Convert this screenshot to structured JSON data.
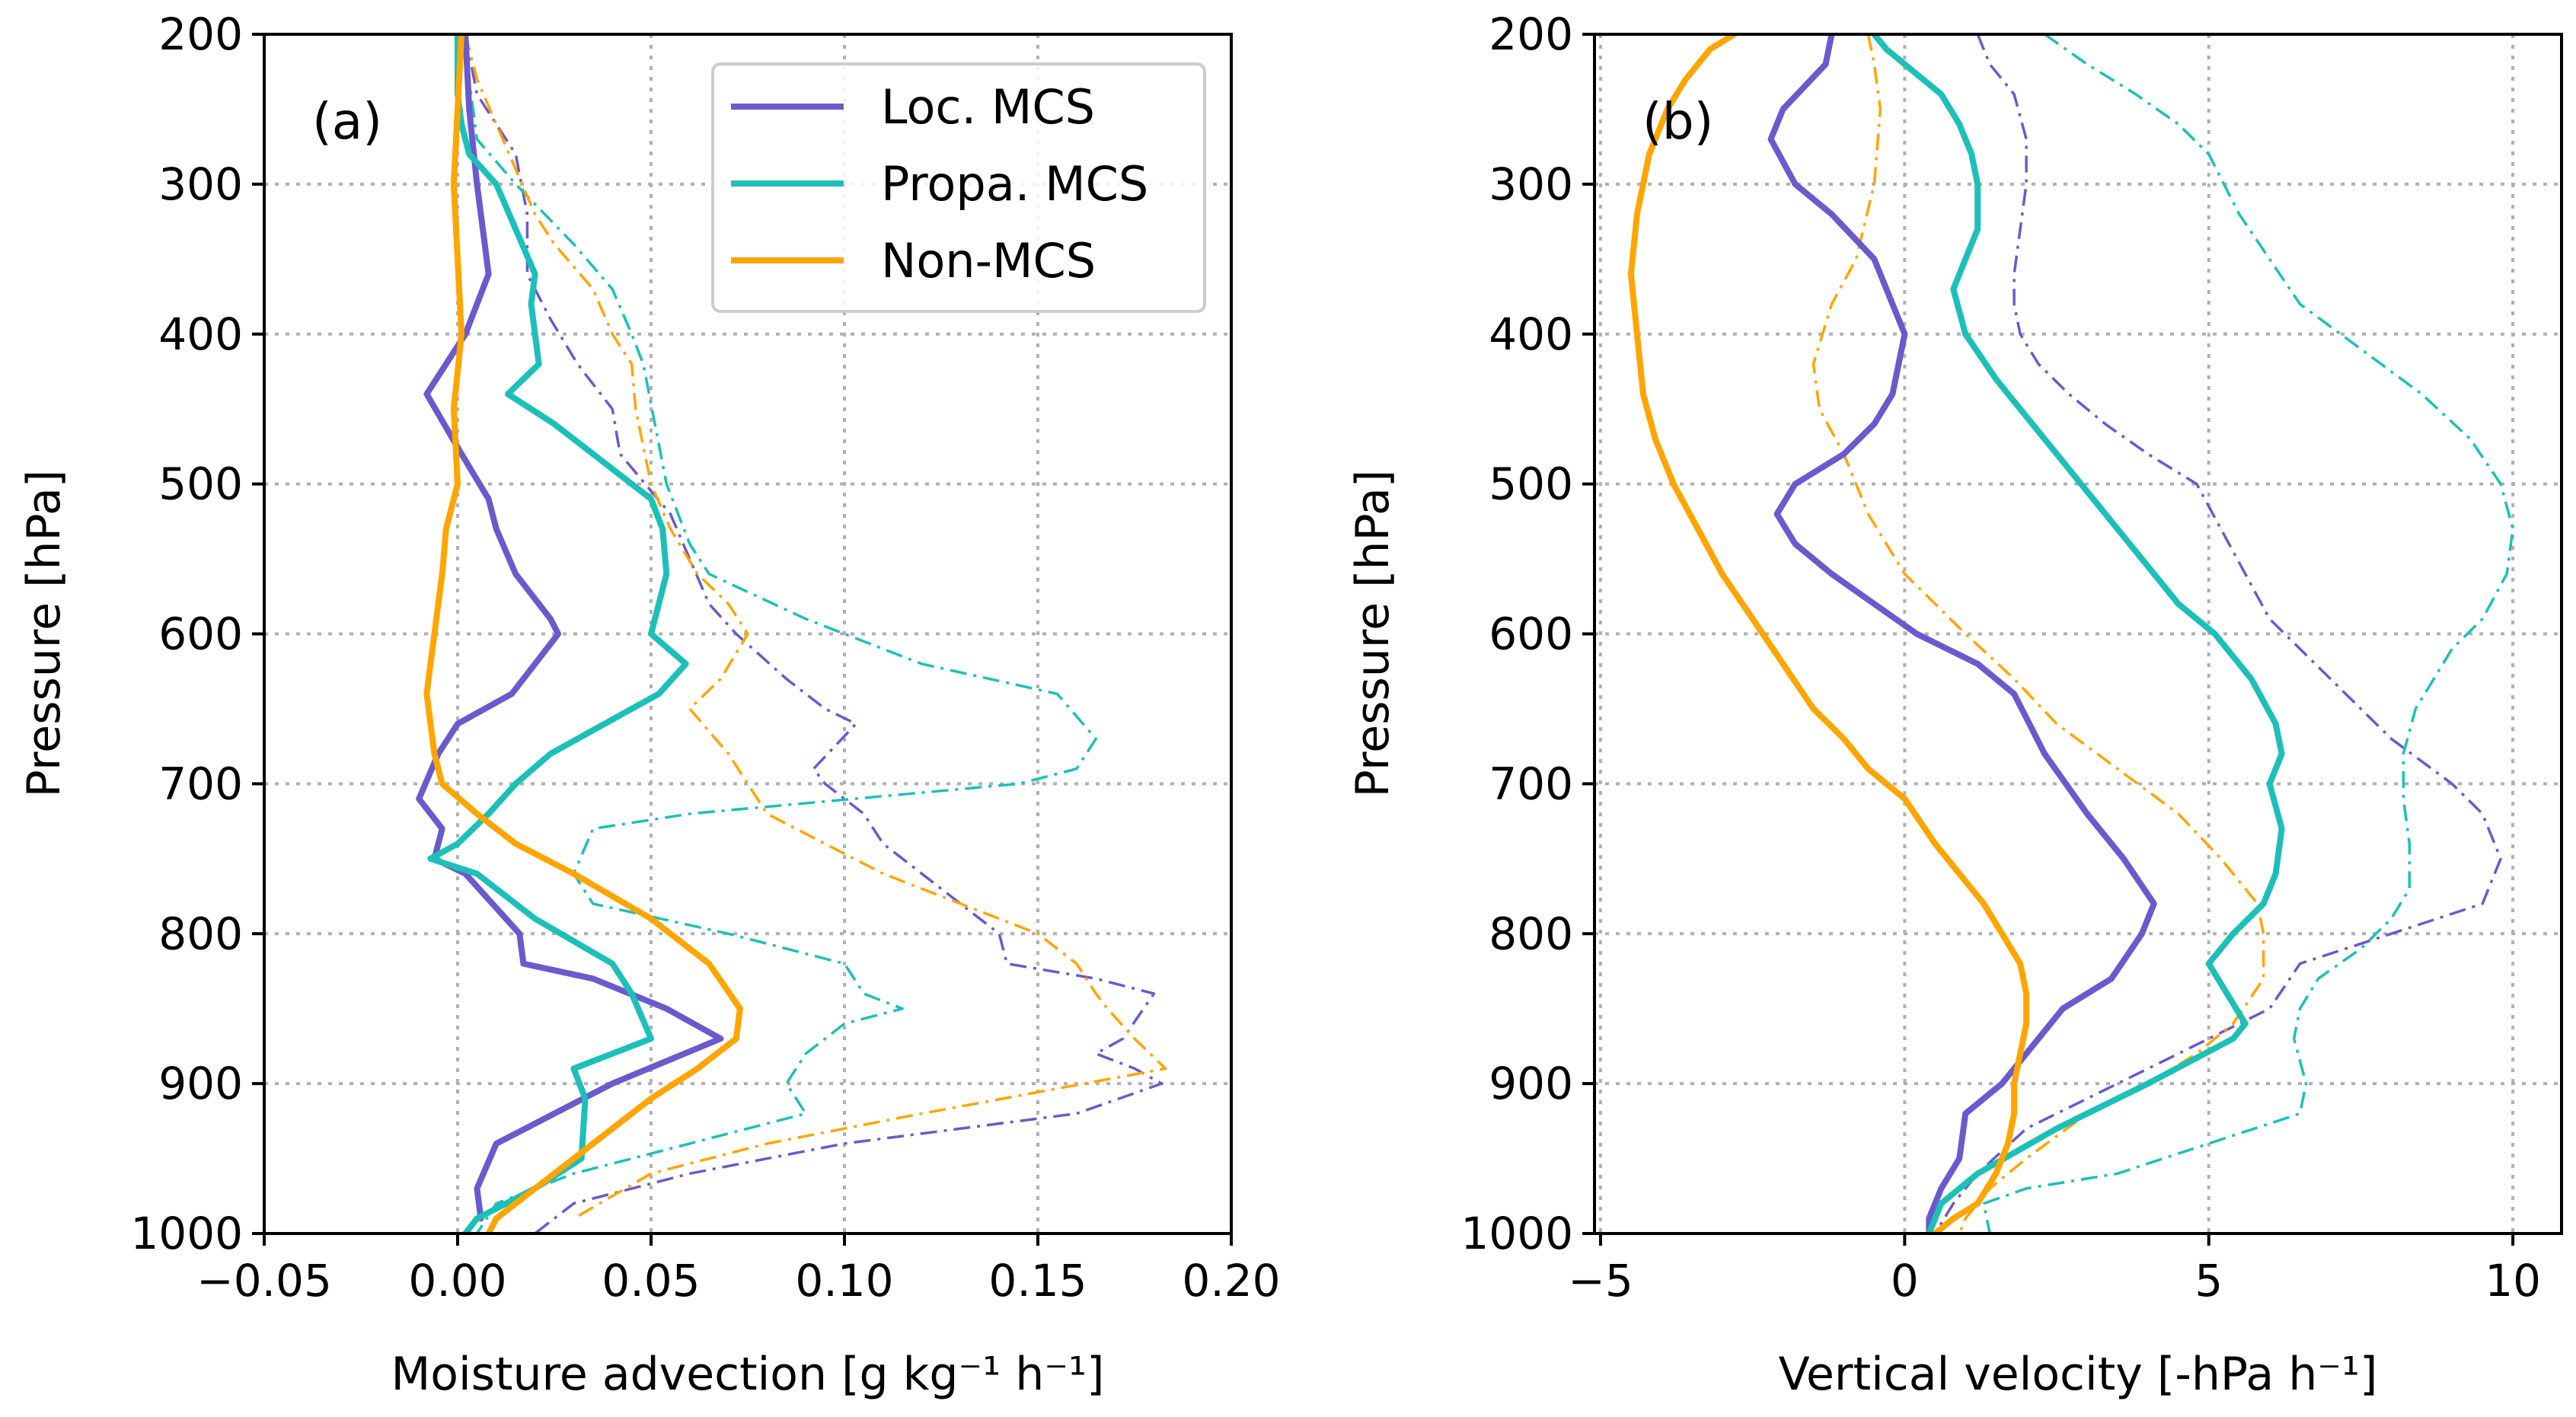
{
  "colors": {
    "loc": "#6a5acd",
    "propa": "#1cc0b8",
    "non": "#ffa500"
  },
  "legend": {
    "items": [
      {
        "label": "Loc. MCS",
        "color": "#6a5acd"
      },
      {
        "label": "Propa. MCS",
        "color": "#1cc0b8"
      },
      {
        "label": "Non-MCS",
        "color": "#ffa500"
      }
    ]
  },
  "chart_data": [
    {
      "panel": "(a)",
      "type": "line",
      "xlabel": "Moisture advection [g kg⁻¹ h⁻¹]",
      "ylabel": "Pressure [hPa]",
      "xlim": [
        -0.05,
        0.2
      ],
      "ylim": [
        1000,
        200
      ],
      "xticks": [
        -0.05,
        0.0,
        0.05,
        0.1,
        0.15,
        0.2
      ],
      "xtick_labels": [
        "−0.05",
        "0.00",
        "0.05",
        "0.10",
        "0.15",
        "0.20"
      ],
      "yticks": [
        200,
        300,
        400,
        500,
        600,
        700,
        800,
        900,
        1000
      ],
      "ytick_labels": [
        "200",
        "300",
        "400",
        "500",
        "600",
        "700",
        "800",
        "900",
        "1000"
      ],
      "grid": true,
      "legend_position": "top-right",
      "series": [
        {
          "name": "Loc. MCS",
          "style": "solid",
          "x": [
            0.002,
            0.003,
            0.005,
            0.007,
            0.008,
            0.002,
            -0.003,
            -0.008,
            0.001,
            0.008,
            0.01,
            0.015,
            0.018,
            0.024,
            0.026,
            0.02,
            0.014,
            0.0,
            -0.005,
            -0.01,
            -0.004,
            -0.006,
            0.002,
            0.016,
            0.017,
            0.035,
            0.054,
            0.068,
            0.04,
            0.01,
            0.005,
            0.006
          ],
          "y": [
            200,
            250,
            300,
            340,
            360,
            400,
            420,
            440,
            480,
            510,
            530,
            560,
            570,
            590,
            600,
            620,
            640,
            660,
            680,
            710,
            730,
            750,
            760,
            800,
            820,
            830,
            850,
            870,
            900,
            940,
            970,
            990
          ]
        },
        {
          "name": "Loc. MCS",
          "style": "dash-dot",
          "x": [
            0.002,
            0.005,
            0.015,
            0.018,
            0.018,
            0.024,
            0.031,
            0.04,
            0.042,
            0.055,
            0.06,
            0.065,
            0.072,
            0.085,
            0.095,
            0.103,
            0.092,
            0.095,
            0.105,
            0.11,
            0.115,
            0.125,
            0.14,
            0.142,
            0.165,
            0.18,
            0.172,
            0.165,
            0.175,
            0.182,
            0.16,
            0.1,
            0.06,
            0.03,
            0.02
          ],
          "y": [
            200,
            240,
            280,
            320,
            360,
            390,
            420,
            450,
            480,
            520,
            550,
            580,
            600,
            630,
            650,
            660,
            690,
            700,
            720,
            740,
            750,
            770,
            800,
            820,
            830,
            840,
            870,
            880,
            890,
            900,
            920,
            940,
            960,
            980,
            1000
          ]
        },
        {
          "name": "Propa. MCS",
          "style": "solid",
          "x": [
            0.0,
            0.0,
            0.001,
            0.003,
            0.01,
            0.015,
            0.02,
            0.019,
            0.021,
            0.013,
            0.025,
            0.04,
            0.05,
            0.053,
            0.054,
            0.052,
            0.05,
            0.059,
            0.052,
            0.038,
            0.024,
            0.015,
            0.008,
            0.0,
            -0.007,
            0.005,
            0.02,
            0.04,
            0.045,
            0.05,
            0.04,
            0.03,
            0.033,
            0.032,
            0.02,
            0.005,
            0.002
          ],
          "y": [
            200,
            240,
            260,
            280,
            300,
            330,
            360,
            380,
            420,
            440,
            460,
            490,
            510,
            530,
            560,
            580,
            600,
            620,
            640,
            660,
            680,
            700,
            720,
            740,
            750,
            760,
            790,
            820,
            840,
            870,
            880,
            890,
            910,
            950,
            970,
            990,
            1000
          ]
        },
        {
          "name": "Propa. MCS",
          "style": "dash-dot",
          "x": [
            0.002,
            0.003,
            0.005,
            0.015,
            0.03,
            0.04,
            0.045,
            0.048,
            0.051,
            0.054,
            0.06,
            0.065,
            0.09,
            0.12,
            0.155,
            0.165,
            0.16,
            0.145,
            0.06,
            0.035,
            0.03,
            0.035,
            0.07,
            0.1,
            0.105,
            0.115,
            0.1,
            0.09,
            0.085,
            0.09,
            0.06,
            0.03,
            0.01,
            0.005
          ],
          "y": [
            200,
            230,
            270,
            300,
            340,
            370,
            400,
            420,
            460,
            500,
            540,
            560,
            590,
            620,
            640,
            670,
            690,
            700,
            720,
            730,
            760,
            780,
            800,
            820,
            840,
            850,
            860,
            880,
            900,
            920,
            940,
            960,
            980,
            1000
          ]
        },
        {
          "name": "Non-MCS",
          "style": "solid",
          "x": [
            0.001,
            0.0,
            -0.001,
            0.0,
            0.001,
            -0.001,
            0.0,
            -0.003,
            -0.004,
            -0.006,
            -0.007,
            -0.008,
            -0.007,
            -0.006,
            -0.004,
            0.005,
            0.015,
            0.03,
            0.05,
            0.065,
            0.073,
            0.072,
            0.062,
            0.05,
            0.04,
            0.03,
            0.02,
            0.01,
            0.008
          ],
          "y": [
            200,
            250,
            300,
            350,
            400,
            450,
            500,
            530,
            560,
            600,
            620,
            640,
            660,
            680,
            700,
            720,
            740,
            760,
            790,
            820,
            850,
            870,
            890,
            910,
            930,
            950,
            970,
            990,
            1000
          ]
        },
        {
          "name": "Non-MCS",
          "style": "dash-dot",
          "x": [
            0.002,
            0.005,
            0.01,
            0.015,
            0.02,
            0.025,
            0.035,
            0.04,
            0.045,
            0.046,
            0.05,
            0.055,
            0.062,
            0.07,
            0.075,
            0.068,
            0.06,
            0.07,
            0.075,
            0.08,
            0.11,
            0.13,
            0.15,
            0.16,
            0.165,
            0.168,
            0.175,
            0.183,
            0.12,
            0.08,
            0.05,
            0.03
          ],
          "y": [
            200,
            230,
            260,
            290,
            320,
            340,
            370,
            400,
            420,
            450,
            500,
            530,
            560,
            580,
            600,
            630,
            650,
            680,
            700,
            720,
            760,
            780,
            800,
            820,
            840,
            850,
            870,
            890,
            920,
            940,
            960,
            990
          ]
        }
      ]
    },
    {
      "panel": "(b)",
      "type": "line",
      "xlabel": "Vertical velocity [-hPa h⁻¹]",
      "ylabel": "Pressure [hPa]",
      "xlim": [
        -5.1,
        10.8
      ],
      "ylim": [
        1000,
        200
      ],
      "xticks": [
        -5,
        0,
        5,
        10
      ],
      "xtick_labels": [
        "−5",
        "0",
        "5",
        "10"
      ],
      "yticks": [
        200,
        300,
        400,
        500,
        600,
        700,
        800,
        900,
        1000
      ],
      "ytick_labels": [
        "200",
        "300",
        "400",
        "500",
        "600",
        "700",
        "800",
        "900",
        "1000"
      ],
      "grid": true,
      "series": [
        {
          "name": "Loc. MCS",
          "style": "solid",
          "x": [
            -1.2,
            -1.3,
            -2.0,
            -2.2,
            -1.8,
            -1.2,
            -0.5,
            -0.2,
            0.0,
            -0.1,
            -0.2,
            -0.5,
            -1.0,
            -1.8,
            -2.1,
            -1.8,
            -1.2,
            -0.5,
            0.2,
            1.2,
            1.8,
            2.3,
            3.0,
            3.6,
            4.1,
            3.9,
            3.4,
            2.6,
            1.6,
            1.0,
            0.9,
            0.6,
            0.4,
            0.4
          ],
          "y": [
            200,
            220,
            250,
            270,
            300,
            320,
            350,
            380,
            400,
            420,
            440,
            460,
            480,
            500,
            520,
            540,
            560,
            580,
            600,
            620,
            640,
            680,
            720,
            750,
            780,
            800,
            830,
            850,
            900,
            920,
            950,
            970,
            990,
            1000
          ]
        },
        {
          "name": "Loc. MCS",
          "style": "dash-dot",
          "x": [
            1.2,
            1.4,
            1.8,
            2.0,
            2.0,
            1.9,
            1.8,
            1.8,
            1.9,
            2.2,
            2.7,
            3.3,
            4.0,
            4.8,
            5.2,
            5.6,
            6.0,
            7.0,
            8.0,
            9.0,
            9.5,
            9.8,
            9.5,
            8.0,
            6.5,
            6.0,
            4.5,
            3.0,
            2.0,
            1.2,
            0.8,
            0.5
          ],
          "y": [
            200,
            220,
            240,
            270,
            300,
            330,
            360,
            380,
            400,
            420,
            440,
            460,
            480,
            500,
            530,
            560,
            590,
            630,
            670,
            700,
            720,
            750,
            780,
            800,
            820,
            850,
            880,
            910,
            930,
            960,
            980,
            1000
          ]
        },
        {
          "name": "Propa. MCS",
          "style": "solid",
          "x": [
            -0.5,
            -0.3,
            0.0,
            0.3,
            0.6,
            0.9,
            1.1,
            1.2,
            1.2,
            1.0,
            0.8,
            1.0,
            1.5,
            2.1,
            2.7,
            3.3,
            3.9,
            4.5,
            5.1,
            5.7,
            6.1,
            6.2,
            6.0,
            6.2,
            6.1,
            5.9,
            5.4,
            5.0,
            5.3,
            5.6,
            5.4,
            4.0,
            2.5,
            1.2,
            0.6,
            0.4
          ],
          "y": [
            200,
            210,
            220,
            230,
            240,
            260,
            280,
            300,
            330,
            350,
            370,
            400,
            430,
            460,
            490,
            520,
            550,
            580,
            600,
            630,
            660,
            680,
            700,
            730,
            760,
            780,
            800,
            820,
            840,
            860,
            870,
            900,
            930,
            960,
            980,
            1000
          ]
        },
        {
          "name": "Propa. MCS",
          "style": "dash-dot",
          "x": [
            2.3,
            3.0,
            3.8,
            4.5,
            5.0,
            5.5,
            6.0,
            6.5,
            7.5,
            8.5,
            9.3,
            9.8,
            10.0,
            9.9,
            9.5,
            9.0,
            8.7,
            8.4,
            8.2,
            8.2,
            8.3,
            8.3,
            8.0,
            7.5,
            6.8,
            6.5,
            6.4,
            6.6,
            6.5,
            5.0,
            3.5,
            2.0,
            1.3,
            1.4
          ],
          "y": [
            200,
            220,
            240,
            260,
            280,
            320,
            350,
            380,
            410,
            440,
            470,
            500,
            530,
            560,
            590,
            610,
            630,
            650,
            680,
            710,
            740,
            770,
            790,
            810,
            830,
            850,
            870,
            900,
            920,
            940,
            960,
            970,
            980,
            1000
          ]
        },
        {
          "name": "Non-MCS",
          "style": "solid",
          "x": [
            -2.8,
            -3.2,
            -3.6,
            -3.9,
            -4.2,
            -4.4,
            -4.5,
            -4.4,
            -4.3,
            -4.1,
            -3.8,
            -3.4,
            -3.0,
            -2.5,
            -2.0,
            -1.5,
            -1.0,
            -0.6,
            0.0,
            0.5,
            0.9,
            1.3,
            1.6,
            1.9,
            2.0,
            2.0,
            1.9,
            1.8,
            1.8,
            1.7,
            1.5,
            1.2,
            0.8,
            0.5
          ],
          "y": [
            200,
            210,
            230,
            250,
            280,
            320,
            360,
            400,
            440,
            470,
            500,
            530,
            560,
            590,
            620,
            650,
            670,
            690,
            710,
            740,
            760,
            780,
            800,
            820,
            840,
            860,
            880,
            900,
            920,
            940,
            960,
            980,
            990,
            1000
          ]
        },
        {
          "name": "Non-MCS",
          "style": "dash-dot",
          "x": [
            -0.6,
            -0.5,
            -0.4,
            -0.5,
            -0.8,
            -1.2,
            -1.5,
            -1.4,
            -1.0,
            -0.8,
            -0.6,
            -0.3,
            0.0,
            0.5,
            1.0,
            1.8,
            2.5,
            3.5,
            4.5,
            5.2,
            5.8,
            5.9,
            5.9,
            5.4,
            4.8,
            4.0,
            3.0,
            2.0,
            1.4,
            1.0,
            0.9
          ],
          "y": [
            200,
            220,
            250,
            300,
            350,
            380,
            420,
            450,
            480,
            500,
            520,
            540,
            560,
            580,
            600,
            630,
            660,
            690,
            720,
            750,
            780,
            800,
            830,
            860,
            880,
            900,
            920,
            950,
            970,
            990,
            1000
          ]
        }
      ]
    }
  ]
}
